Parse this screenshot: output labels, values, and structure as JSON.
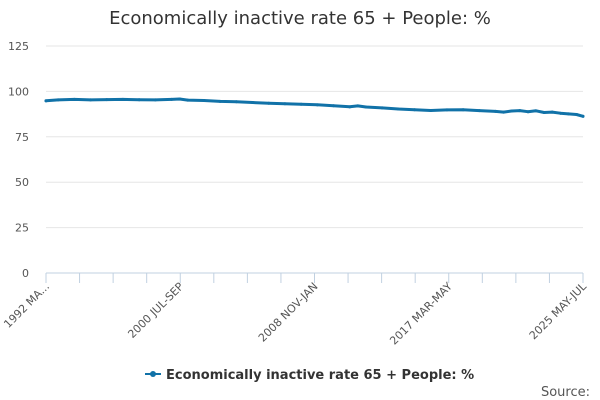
{
  "chart_data": {
    "type": "line",
    "title": "Economically inactive rate 65 + People: %",
    "xlabel": "",
    "ylabel": "",
    "ylim": [
      0,
      125
    ],
    "yticks": [
      0,
      25,
      50,
      75,
      100,
      125
    ],
    "x_tick_labels": [
      "1992 MA...",
      "2000 JUL-SEP",
      "2008 NOV-JAN",
      "2017 MAR-MAY",
      "2025 MAY-JUL"
    ],
    "x_tick_positions": [
      0,
      0.25,
      0.5,
      0.75,
      1.0
    ],
    "grid": true,
    "legend": "bottom-center",
    "series": [
      {
        "name": "Economically inactive rate 65 + People: %",
        "color": "#1172a8",
        "x": [
          1992.25,
          1993.0,
          1994.0,
          1995.0,
          1996.0,
          1997.0,
          1998.0,
          1999.0,
          2000.0,
          2000.5,
          2001.0,
          2002.0,
          2003.0,
          2004.0,
          2005.0,
          2006.0,
          2007.0,
          2008.0,
          2009.0,
          2010.0,
          2011.0,
          2011.5,
          2012.0,
          2013.0,
          2014.0,
          2015.0,
          2016.0,
          2017.0,
          2018.0,
          2019.0,
          2020.0,
          2020.5,
          2021.0,
          2021.5,
          2022.0,
          2022.5,
          2023.0,
          2023.5,
          2024.0,
          2024.5,
          2025.0,
          2025.4
        ],
        "values": [
          94.8,
          95.3,
          95.6,
          95.3,
          95.5,
          95.6,
          95.4,
          95.3,
          95.6,
          95.8,
          95.2,
          95.0,
          94.5,
          94.3,
          93.9,
          93.5,
          93.2,
          92.9,
          92.6,
          92.1,
          91.5,
          92.0,
          91.4,
          90.9,
          90.3,
          89.9,
          89.5,
          89.8,
          89.9,
          89.4,
          89.0,
          88.6,
          89.2,
          89.4,
          88.8,
          89.3,
          88.4,
          88.6,
          88.0,
          87.6,
          87.3,
          86.3
        ]
      }
    ],
    "source_label": "Source:"
  }
}
